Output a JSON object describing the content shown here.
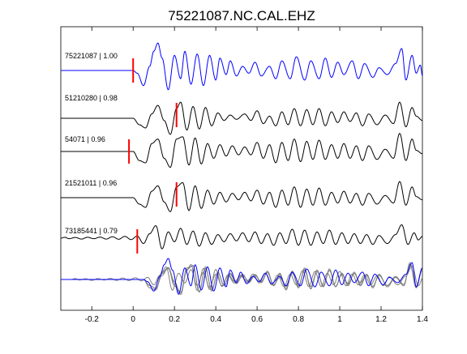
{
  "colors": {
    "reference": "#0000ff",
    "trace": "#000000",
    "overlay": "#7f7f7f",
    "pick": "#ff0000"
  },
  "chart_data": {
    "type": "line",
    "title": "75221087.NC.CAL.EHZ",
    "xlabel": "",
    "ylabel": "",
    "xlim": [
      -0.35,
      1.4
    ],
    "xticks": [
      -0.2,
      0,
      0.2,
      0.4,
      0.6,
      0.8,
      1,
      1.2,
      1.4
    ],
    "xtick_labels": [
      "-0.2",
      "0",
      "0.2",
      "0.4",
      "0.6",
      "0.8",
      "1",
      "1.2",
      "1.4"
    ],
    "y_ticks": "none",
    "grid": false,
    "series": [
      {
        "name": "75221087 | 1.00",
        "role": "reference",
        "pick_time": 0.0,
        "onset": 0.0,
        "amplitude": 1.0,
        "waveform": [
          [
            -0.35,
            0
          ],
          [
            0.0,
            0
          ],
          [
            0.02,
            -0.1
          ],
          [
            0.05,
            -0.55
          ],
          [
            0.08,
            0.15
          ],
          [
            0.1,
            0.7
          ],
          [
            0.12,
            1.0
          ],
          [
            0.14,
            0.45
          ],
          [
            0.17,
            -0.7
          ],
          [
            0.2,
            0.55
          ],
          [
            0.23,
            -0.3
          ],
          [
            0.25,
            0.7
          ],
          [
            0.28,
            -0.5
          ],
          [
            0.31,
            0.6
          ],
          [
            0.34,
            -0.55
          ],
          [
            0.37,
            0.55
          ],
          [
            0.4,
            -0.35
          ],
          [
            0.42,
            0.45
          ],
          [
            0.45,
            -0.15
          ],
          [
            0.47,
            0.35
          ],
          [
            0.5,
            -0.2
          ],
          [
            0.53,
            0.15
          ],
          [
            0.56,
            -0.1
          ],
          [
            0.59,
            0.3
          ],
          [
            0.62,
            -0.2
          ],
          [
            0.66,
            0.15
          ],
          [
            0.69,
            -0.3
          ],
          [
            0.72,
            0.35
          ],
          [
            0.76,
            -0.3
          ],
          [
            0.79,
            0.5
          ],
          [
            0.83,
            -0.35
          ],
          [
            0.86,
            0.35
          ],
          [
            0.9,
            -0.3
          ],
          [
            0.93,
            0.45
          ],
          [
            0.96,
            -0.25
          ],
          [
            0.99,
            0.3
          ],
          [
            1.02,
            -0.15
          ],
          [
            1.06,
            0.35
          ],
          [
            1.09,
            -0.3
          ],
          [
            1.12,
            0.25
          ],
          [
            1.16,
            -0.25
          ],
          [
            1.19,
            0.1
          ],
          [
            1.23,
            -0.15
          ],
          [
            1.27,
            0.25
          ],
          [
            1.3,
            0.8
          ],
          [
            1.32,
            -0.35
          ],
          [
            1.35,
            0.55
          ],
          [
            1.37,
            -0.1
          ],
          [
            1.39,
            0.2
          ],
          [
            1.4,
            -0.2
          ]
        ]
      },
      {
        "name": "51210280 | 0.98",
        "pick_time": 0.21,
        "onset": 0.0,
        "amplitude": 0.95,
        "waveform": [
          [
            -0.35,
            0
          ],
          [
            0.0,
            0
          ],
          [
            0.03,
            -0.3
          ],
          [
            0.06,
            -0.45
          ],
          [
            0.09,
            0.2
          ],
          [
            0.12,
            0.6
          ],
          [
            0.15,
            -0.1
          ],
          [
            0.18,
            -0.75
          ],
          [
            0.21,
            0.45
          ],
          [
            0.23,
            0.75
          ],
          [
            0.26,
            -0.55
          ],
          [
            0.29,
            0.55
          ],
          [
            0.32,
            -0.5
          ],
          [
            0.35,
            0.5
          ],
          [
            0.38,
            -0.35
          ],
          [
            0.41,
            0.25
          ],
          [
            0.44,
            -0.1
          ],
          [
            0.47,
            0.15
          ],
          [
            0.5,
            -0.05
          ],
          [
            0.54,
            0.2
          ],
          [
            0.57,
            -0.1
          ],
          [
            0.6,
            0.35
          ],
          [
            0.63,
            -0.25
          ],
          [
            0.66,
            0.1
          ],
          [
            0.69,
            -0.35
          ],
          [
            0.72,
            0.3
          ],
          [
            0.75,
            -0.3
          ],
          [
            0.78,
            0.45
          ],
          [
            0.81,
            -0.35
          ],
          [
            0.84,
            0.4
          ],
          [
            0.87,
            -0.3
          ],
          [
            0.9,
            0.45
          ],
          [
            0.93,
            -0.35
          ],
          [
            0.96,
            0.3
          ],
          [
            0.99,
            -0.2
          ],
          [
            1.02,
            0.3
          ],
          [
            1.05,
            -0.15
          ],
          [
            1.08,
            0.25
          ],
          [
            1.11,
            -0.35
          ],
          [
            1.14,
            0.2
          ],
          [
            1.18,
            -0.3
          ],
          [
            1.22,
            0.15
          ],
          [
            1.26,
            -0.25
          ],
          [
            1.29,
            0.75
          ],
          [
            1.32,
            -0.4
          ],
          [
            1.35,
            0.5
          ],
          [
            1.37,
            0.1
          ],
          [
            1.4,
            -0.1
          ]
        ]
      },
      {
        "name": "54071 | 0.96",
        "pick_time": -0.02,
        "onset": 0.0,
        "amplitude": 1.0,
        "waveform": [
          [
            -0.35,
            0
          ],
          [
            0.0,
            0
          ],
          [
            0.03,
            -0.4
          ],
          [
            0.06,
            -0.5
          ],
          [
            0.09,
            0.35
          ],
          [
            0.12,
            0.55
          ],
          [
            0.15,
            -0.3
          ],
          [
            0.18,
            -0.7
          ],
          [
            0.21,
            0.55
          ],
          [
            0.24,
            0.65
          ],
          [
            0.27,
            -0.6
          ],
          [
            0.3,
            0.6
          ],
          [
            0.33,
            -0.55
          ],
          [
            0.36,
            0.35
          ],
          [
            0.39,
            -0.3
          ],
          [
            0.42,
            0.3
          ],
          [
            0.45,
            -0.2
          ],
          [
            0.48,
            0.25
          ],
          [
            0.51,
            -0.15
          ],
          [
            0.54,
            0.2
          ],
          [
            0.57,
            -0.15
          ],
          [
            0.6,
            0.4
          ],
          [
            0.63,
            -0.3
          ],
          [
            0.66,
            0.3
          ],
          [
            0.69,
            -0.5
          ],
          [
            0.72,
            0.4
          ],
          [
            0.75,
            -0.4
          ],
          [
            0.78,
            0.55
          ],
          [
            0.81,
            -0.45
          ],
          [
            0.84,
            0.45
          ],
          [
            0.87,
            -0.35
          ],
          [
            0.9,
            0.5
          ],
          [
            0.93,
            -0.35
          ],
          [
            0.96,
            0.3
          ],
          [
            0.99,
            -0.3
          ],
          [
            1.02,
            0.35
          ],
          [
            1.05,
            -0.3
          ],
          [
            1.08,
            0.25
          ],
          [
            1.11,
            -0.4
          ],
          [
            1.14,
            0.25
          ],
          [
            1.18,
            -0.35
          ],
          [
            1.22,
            0.1
          ],
          [
            1.26,
            -0.3
          ],
          [
            1.29,
            0.8
          ],
          [
            1.32,
            -0.4
          ],
          [
            1.35,
            0.55
          ],
          [
            1.37,
            0.05
          ],
          [
            1.4,
            -0.1
          ]
        ]
      },
      {
        "name": "21521011 | 0.96",
        "pick_time": 0.21,
        "onset": 0.0,
        "amplitude": 0.95,
        "waveform": [
          [
            -0.35,
            0
          ],
          [
            0.0,
            0
          ],
          [
            0.03,
            -0.3
          ],
          [
            0.06,
            -0.45
          ],
          [
            0.09,
            0.3
          ],
          [
            0.12,
            0.55
          ],
          [
            0.15,
            -0.2
          ],
          [
            0.18,
            -0.65
          ],
          [
            0.21,
            0.5
          ],
          [
            0.24,
            0.7
          ],
          [
            0.27,
            -0.6
          ],
          [
            0.3,
            0.55
          ],
          [
            0.33,
            -0.5
          ],
          [
            0.36,
            0.35
          ],
          [
            0.39,
            -0.3
          ],
          [
            0.42,
            0.25
          ],
          [
            0.45,
            -0.2
          ],
          [
            0.48,
            0.2
          ],
          [
            0.51,
            -0.1
          ],
          [
            0.54,
            0.25
          ],
          [
            0.57,
            -0.15
          ],
          [
            0.6,
            0.35
          ],
          [
            0.63,
            -0.3
          ],
          [
            0.66,
            0.25
          ],
          [
            0.69,
            -0.45
          ],
          [
            0.72,
            0.35
          ],
          [
            0.75,
            -0.35
          ],
          [
            0.78,
            0.5
          ],
          [
            0.81,
            -0.45
          ],
          [
            0.84,
            0.4
          ],
          [
            0.87,
            -0.35
          ],
          [
            0.9,
            0.45
          ],
          [
            0.93,
            -0.35
          ],
          [
            0.96,
            0.25
          ],
          [
            0.99,
            -0.25
          ],
          [
            1.02,
            0.3
          ],
          [
            1.05,
            -0.25
          ],
          [
            1.08,
            0.2
          ],
          [
            1.11,
            -0.35
          ],
          [
            1.14,
            0.2
          ],
          [
            1.18,
            -0.3
          ],
          [
            1.22,
            0.1
          ],
          [
            1.26,
            -0.25
          ],
          [
            1.29,
            0.75
          ],
          [
            1.32,
            -0.35
          ],
          [
            1.35,
            0.5
          ],
          [
            1.37,
            0.05
          ],
          [
            1.4,
            -0.1
          ]
        ]
      },
      {
        "name": "73185441 | 0.79",
        "pick_time": 0.02,
        "onset": -0.35,
        "amplitude": 0.85,
        "waveform": [
          [
            -0.35,
            0
          ],
          [
            -0.33,
            0.05
          ],
          [
            -0.31,
            -0.03
          ],
          [
            -0.28,
            0.04
          ],
          [
            -0.25,
            -0.05
          ],
          [
            -0.22,
            0.05
          ],
          [
            -0.19,
            -0.03
          ],
          [
            -0.16,
            0.06
          ],
          [
            -0.13,
            -0.05
          ],
          [
            -0.1,
            0.08
          ],
          [
            -0.07,
            -0.06
          ],
          [
            -0.04,
            0.1
          ],
          [
            -0.01,
            -0.08
          ],
          [
            0.02,
            0.12
          ],
          [
            0.05,
            -0.3
          ],
          [
            0.08,
            0.25
          ],
          [
            0.11,
            0.7
          ],
          [
            0.14,
            -0.6
          ],
          [
            0.17,
            0.35
          ],
          [
            0.2,
            -0.2
          ],
          [
            0.23,
            0.55
          ],
          [
            0.26,
            -0.35
          ],
          [
            0.29,
            0.4
          ],
          [
            0.32,
            -0.45
          ],
          [
            0.35,
            0.3
          ],
          [
            0.38,
            -0.35
          ],
          [
            0.41,
            0.2
          ],
          [
            0.44,
            -0.2
          ],
          [
            0.47,
            0.25
          ],
          [
            0.5,
            -0.15
          ],
          [
            0.53,
            0.3
          ],
          [
            0.56,
            -0.2
          ],
          [
            0.59,
            0.35
          ],
          [
            0.62,
            -0.3
          ],
          [
            0.65,
            0.25
          ],
          [
            0.68,
            -0.4
          ],
          [
            0.71,
            0.3
          ],
          [
            0.74,
            -0.3
          ],
          [
            0.77,
            0.5
          ],
          [
            0.8,
            -0.4
          ],
          [
            0.83,
            0.45
          ],
          [
            0.86,
            -0.4
          ],
          [
            0.89,
            0.35
          ],
          [
            0.92,
            -0.3
          ],
          [
            0.95,
            0.45
          ],
          [
            0.98,
            -0.35
          ],
          [
            1.01,
            0.3
          ],
          [
            1.04,
            -0.3
          ],
          [
            1.07,
            0.25
          ],
          [
            1.1,
            -0.3
          ],
          [
            1.13,
            0.2
          ],
          [
            1.16,
            -0.35
          ],
          [
            1.19,
            0.15
          ],
          [
            1.23,
            -0.3
          ],
          [
            1.27,
            0.2
          ],
          [
            1.3,
            0.75
          ],
          [
            1.33,
            -0.35
          ],
          [
            1.36,
            0.3
          ],
          [
            1.38,
            -0.1
          ],
          [
            1.4,
            0.1
          ]
        ]
      },
      {
        "name": "",
        "role": "overlay",
        "members": [
          "75221087 | 1.00",
          "51210280 | 0.98",
          "54071 | 0.96",
          "21521011 | 0.96",
          "73185441 | 0.79"
        ],
        "aligned_onset": 0.05
      }
    ]
  }
}
